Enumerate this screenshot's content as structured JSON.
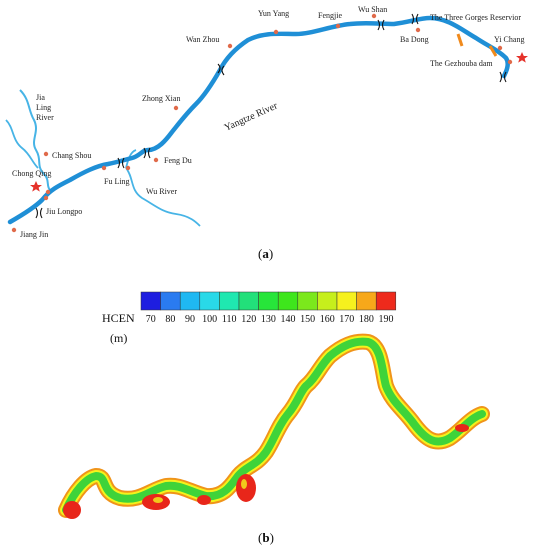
{
  "panel_a": {
    "label_open": "(",
    "label_letter": "a",
    "label_close": ")",
    "places": {
      "jia_ling_1": "Jia",
      "jia_ling_2": "Ling",
      "jia_ling_3": "River",
      "chang_shou": "Chang Shou",
      "chong_qing": "Chong Qing",
      "jiu_longpo": "Jiu Longpo",
      "jiang_jin": "Jiang Jin",
      "fu_ling": "Fu Ling",
      "wu_river": "Wu River",
      "feng_du": "Feng Du",
      "zhong_xian": "Zhong Xian",
      "yangtze_river": "Yangtze River",
      "wan_zhou": "Wan Zhou",
      "yun_yang": "Yun Yang",
      "fengjie": "Fengjie",
      "wu_shan": "Wu Shan",
      "ba_dong": "Ba Dong",
      "three_gorges": "The Three Gorges Reservior",
      "yi_chang": "Yi Chang",
      "gezhouba": "The Gezhouba dam"
    },
    "colors": {
      "river": "#1f8fd6",
      "tributary": "#47b4e6",
      "city": "#e06a4a",
      "star": "#e5322a",
      "dam": "#f08a1c"
    }
  },
  "panel_b": {
    "label_open": "(",
    "label_letter": "b",
    "label_close": ")",
    "legend_title": "HCEN",
    "legend_unit": "(m)",
    "scale_values": [
      "70",
      "80",
      "90",
      "100",
      "110",
      "120",
      "130",
      "140",
      "150",
      "160",
      "170",
      "180",
      "190"
    ],
    "scale_colors": [
      "#1e1ee0",
      "#2a7bf0",
      "#1fb8f2",
      "#29d9e8",
      "#1fe8b0",
      "#22e07a",
      "#27e53a",
      "#3ee61c",
      "#7be81c",
      "#c6ef1c",
      "#f6f11e",
      "#f7a81a",
      "#ee2a1c"
    ],
    "band_colors": {
      "red": "#e8261a",
      "yellow": "#f4f21c",
      "green": "#3fd33a",
      "orange": "#f0941a"
    }
  }
}
